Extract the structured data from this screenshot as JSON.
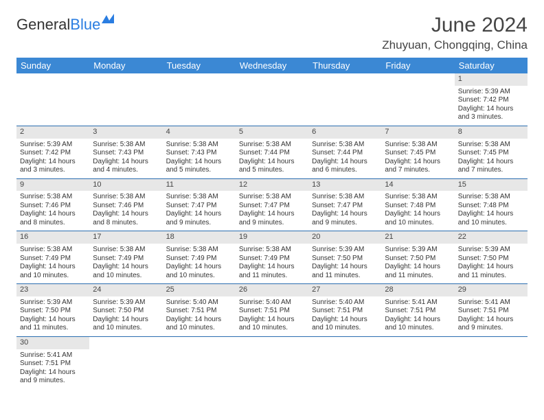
{
  "logo": {
    "text1": "General",
    "text2": "Blue"
  },
  "title": "June 2024",
  "location": "Zhuyuan, Chongqing, China",
  "colors": {
    "header_bg": "#3b88d4",
    "header_text": "#ffffff",
    "daynum_bg": "#e7e7e7",
    "week_border": "#2a6db0",
    "logo_blue": "#2a7de1"
  },
  "weekdays": [
    "Sunday",
    "Monday",
    "Tuesday",
    "Wednesday",
    "Thursday",
    "Friday",
    "Saturday"
  ],
  "weeks": [
    [
      null,
      null,
      null,
      null,
      null,
      null,
      {
        "n": "1",
        "sr": "Sunrise: 5:39 AM",
        "ss": "Sunset: 7:42 PM",
        "d1": "Daylight: 14 hours",
        "d2": "and 3 minutes."
      }
    ],
    [
      {
        "n": "2",
        "sr": "Sunrise: 5:39 AM",
        "ss": "Sunset: 7:42 PM",
        "d1": "Daylight: 14 hours",
        "d2": "and 3 minutes."
      },
      {
        "n": "3",
        "sr": "Sunrise: 5:38 AM",
        "ss": "Sunset: 7:43 PM",
        "d1": "Daylight: 14 hours",
        "d2": "and 4 minutes."
      },
      {
        "n": "4",
        "sr": "Sunrise: 5:38 AM",
        "ss": "Sunset: 7:43 PM",
        "d1": "Daylight: 14 hours",
        "d2": "and 5 minutes."
      },
      {
        "n": "5",
        "sr": "Sunrise: 5:38 AM",
        "ss": "Sunset: 7:44 PM",
        "d1": "Daylight: 14 hours",
        "d2": "and 5 minutes."
      },
      {
        "n": "6",
        "sr": "Sunrise: 5:38 AM",
        "ss": "Sunset: 7:44 PM",
        "d1": "Daylight: 14 hours",
        "d2": "and 6 minutes."
      },
      {
        "n": "7",
        "sr": "Sunrise: 5:38 AM",
        "ss": "Sunset: 7:45 PM",
        "d1": "Daylight: 14 hours",
        "d2": "and 7 minutes."
      },
      {
        "n": "8",
        "sr": "Sunrise: 5:38 AM",
        "ss": "Sunset: 7:45 PM",
        "d1": "Daylight: 14 hours",
        "d2": "and 7 minutes."
      }
    ],
    [
      {
        "n": "9",
        "sr": "Sunrise: 5:38 AM",
        "ss": "Sunset: 7:46 PM",
        "d1": "Daylight: 14 hours",
        "d2": "and 8 minutes."
      },
      {
        "n": "10",
        "sr": "Sunrise: 5:38 AM",
        "ss": "Sunset: 7:46 PM",
        "d1": "Daylight: 14 hours",
        "d2": "and 8 minutes."
      },
      {
        "n": "11",
        "sr": "Sunrise: 5:38 AM",
        "ss": "Sunset: 7:47 PM",
        "d1": "Daylight: 14 hours",
        "d2": "and 9 minutes."
      },
      {
        "n": "12",
        "sr": "Sunrise: 5:38 AM",
        "ss": "Sunset: 7:47 PM",
        "d1": "Daylight: 14 hours",
        "d2": "and 9 minutes."
      },
      {
        "n": "13",
        "sr": "Sunrise: 5:38 AM",
        "ss": "Sunset: 7:47 PM",
        "d1": "Daylight: 14 hours",
        "d2": "and 9 minutes."
      },
      {
        "n": "14",
        "sr": "Sunrise: 5:38 AM",
        "ss": "Sunset: 7:48 PM",
        "d1": "Daylight: 14 hours",
        "d2": "and 10 minutes."
      },
      {
        "n": "15",
        "sr": "Sunrise: 5:38 AM",
        "ss": "Sunset: 7:48 PM",
        "d1": "Daylight: 14 hours",
        "d2": "and 10 minutes."
      }
    ],
    [
      {
        "n": "16",
        "sr": "Sunrise: 5:38 AM",
        "ss": "Sunset: 7:49 PM",
        "d1": "Daylight: 14 hours",
        "d2": "and 10 minutes."
      },
      {
        "n": "17",
        "sr": "Sunrise: 5:38 AM",
        "ss": "Sunset: 7:49 PM",
        "d1": "Daylight: 14 hours",
        "d2": "and 10 minutes."
      },
      {
        "n": "18",
        "sr": "Sunrise: 5:38 AM",
        "ss": "Sunset: 7:49 PM",
        "d1": "Daylight: 14 hours",
        "d2": "and 10 minutes."
      },
      {
        "n": "19",
        "sr": "Sunrise: 5:38 AM",
        "ss": "Sunset: 7:49 PM",
        "d1": "Daylight: 14 hours",
        "d2": "and 11 minutes."
      },
      {
        "n": "20",
        "sr": "Sunrise: 5:39 AM",
        "ss": "Sunset: 7:50 PM",
        "d1": "Daylight: 14 hours",
        "d2": "and 11 minutes."
      },
      {
        "n": "21",
        "sr": "Sunrise: 5:39 AM",
        "ss": "Sunset: 7:50 PM",
        "d1": "Daylight: 14 hours",
        "d2": "and 11 minutes."
      },
      {
        "n": "22",
        "sr": "Sunrise: 5:39 AM",
        "ss": "Sunset: 7:50 PM",
        "d1": "Daylight: 14 hours",
        "d2": "and 11 minutes."
      }
    ],
    [
      {
        "n": "23",
        "sr": "Sunrise: 5:39 AM",
        "ss": "Sunset: 7:50 PM",
        "d1": "Daylight: 14 hours",
        "d2": "and 11 minutes."
      },
      {
        "n": "24",
        "sr": "Sunrise: 5:39 AM",
        "ss": "Sunset: 7:50 PM",
        "d1": "Daylight: 14 hours",
        "d2": "and 10 minutes."
      },
      {
        "n": "25",
        "sr": "Sunrise: 5:40 AM",
        "ss": "Sunset: 7:51 PM",
        "d1": "Daylight: 14 hours",
        "d2": "and 10 minutes."
      },
      {
        "n": "26",
        "sr": "Sunrise: 5:40 AM",
        "ss": "Sunset: 7:51 PM",
        "d1": "Daylight: 14 hours",
        "d2": "and 10 minutes."
      },
      {
        "n": "27",
        "sr": "Sunrise: 5:40 AM",
        "ss": "Sunset: 7:51 PM",
        "d1": "Daylight: 14 hours",
        "d2": "and 10 minutes."
      },
      {
        "n": "28",
        "sr": "Sunrise: 5:41 AM",
        "ss": "Sunset: 7:51 PM",
        "d1": "Daylight: 14 hours",
        "d2": "and 10 minutes."
      },
      {
        "n": "29",
        "sr": "Sunrise: 5:41 AM",
        "ss": "Sunset: 7:51 PM",
        "d1": "Daylight: 14 hours",
        "d2": "and 9 minutes."
      }
    ],
    [
      {
        "n": "30",
        "sr": "Sunrise: 5:41 AM",
        "ss": "Sunset: 7:51 PM",
        "d1": "Daylight: 14 hours",
        "d2": "and 9 minutes."
      },
      null,
      null,
      null,
      null,
      null,
      null
    ]
  ]
}
